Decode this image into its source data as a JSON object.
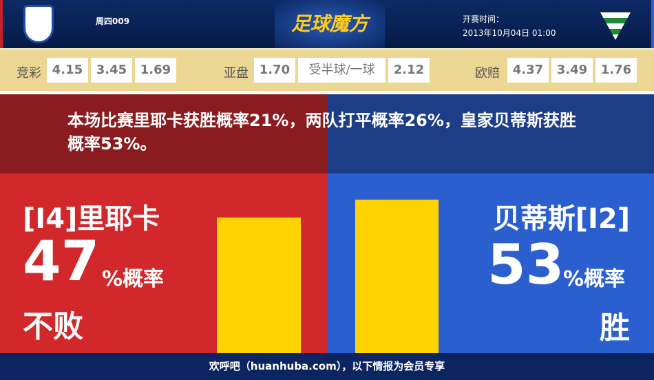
{
  "header": {
    "match_no": "周四009",
    "brand": "足球魔方",
    "time_label": "开赛时间：",
    "time_value": "2013年10月04日 01:00"
  },
  "odds": {
    "jingcai": {
      "label": "竞彩",
      "values": [
        "4.15",
        "3.45",
        "1.69"
      ]
    },
    "yapan": {
      "label": "亚盘",
      "home": "1.70",
      "handicap": "受半球/一球",
      "away": "2.12"
    },
    "oupei": {
      "label": "欧赔",
      "values": [
        "4.37",
        "3.49",
        "1.76"
      ]
    }
  },
  "summary": "本场比赛里耶卡获胜概率21%，两队打平概率26%，皇家贝蒂斯获胜概率53%。",
  "home": {
    "name": "[I4]里耶卡",
    "percent": "47",
    "unit": "%概率",
    "outcome": "不败",
    "value": 47,
    "color": "#d2282b"
  },
  "away": {
    "name": "贝蒂斯[I2]",
    "percent": "53",
    "unit": "%概率",
    "outcome": "胜",
    "value": 53,
    "color": "#2b5fd0"
  },
  "bar_color": "#ffd200",
  "footer": "欢呼吧（huanhuba.com），以下情报为会员专享"
}
